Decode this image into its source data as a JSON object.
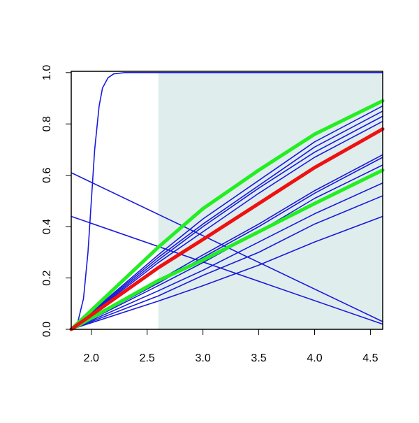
{
  "chart_data": {
    "type": "line",
    "xlim": [
      1.82,
      4.61
    ],
    "ylim": [
      0,
      1.005
    ],
    "xticks": [
      {
        "value": 2,
        "label": "2.0"
      },
      {
        "value": 2.5,
        "label": "2.5"
      },
      {
        "value": 3,
        "label": "3.0"
      },
      {
        "value": 3.5,
        "label": "3.5"
      },
      {
        "value": 4,
        "label": "4.0"
      },
      {
        "value": 4.5,
        "label": "4.5"
      }
    ],
    "yticks": [
      {
        "value": 0,
        "label": "0.0"
      },
      {
        "value": 0.2,
        "label": "0.2"
      },
      {
        "value": 0.4,
        "label": "0.4"
      },
      {
        "value": 0.6,
        "label": "0.6"
      },
      {
        "value": 0.8,
        "label": "0.8"
      },
      {
        "value": 1,
        "label": "1.0"
      }
    ],
    "shaded_region": {
      "x": [
        2.6,
        4.61
      ],
      "y": [
        0,
        1.0
      ],
      "color": "#e0eded"
    },
    "series": [
      {
        "color": "#1a1adc",
        "width": 1.6,
        "x": [
          1.82,
          1.88,
          1.93,
          1.97,
          2.0,
          2.03,
          2.07,
          2.1,
          2.15,
          2.2,
          2.3,
          4.61
        ],
        "values": [
          0,
          0.03,
          0.12,
          0.3,
          0.5,
          0.7,
          0.87,
          0.94,
          0.98,
          0.995,
          1.0,
          1.0
        ]
      },
      {
        "color": "#1a1adc",
        "width": 1.6,
        "x": [
          1.82,
          4.61
        ],
        "values": [
          0.61,
          0.03
        ]
      },
      {
        "color": "#1a1adc",
        "width": 1.6,
        "x": [
          1.82,
          4.61
        ],
        "values": [
          0.44,
          0.02
        ]
      },
      {
        "color": "#1a1adc",
        "width": 1.6,
        "x": [
          1.82,
          2.6,
          3.0,
          3.5,
          4.0,
          4.61
        ],
        "values": [
          0,
          0.29,
          0.43,
          0.58,
          0.73,
          0.87
        ]
      },
      {
        "color": "#1a1adc",
        "width": 1.6,
        "x": [
          1.82,
          2.6,
          3.0,
          3.5,
          4.0,
          4.61
        ],
        "values": [
          0,
          0.28,
          0.41,
          0.56,
          0.71,
          0.85
        ]
      },
      {
        "color": "#1a1adc",
        "width": 1.6,
        "x": [
          1.82,
          2.6,
          3.0,
          3.5,
          4.0,
          4.61
        ],
        "values": [
          0,
          0.27,
          0.4,
          0.55,
          0.69,
          0.83
        ]
      },
      {
        "color": "#1a1adc",
        "width": 1.6,
        "x": [
          1.82,
          2.6,
          3.0,
          3.5,
          4.0,
          4.61
        ],
        "values": [
          0,
          0.26,
          0.38,
          0.53,
          0.67,
          0.81
        ]
      },
      {
        "color": "#1a1adc",
        "width": 1.6,
        "x": [
          1.82,
          2.6,
          3.0,
          3.5,
          4.0,
          4.61
        ],
        "values": [
          0,
          0.19,
          0.29,
          0.41,
          0.54,
          0.68
        ]
      },
      {
        "color": "#1a1adc",
        "width": 1.6,
        "x": [
          1.82,
          2.6,
          3.0,
          3.5,
          4.0,
          4.61
        ],
        "values": [
          0,
          0.18,
          0.28,
          0.4,
          0.53,
          0.67
        ]
      },
      {
        "color": "#1a1adc",
        "width": 1.6,
        "x": [
          1.82,
          2.6,
          3.0,
          3.5,
          4.0,
          4.61
        ],
        "values": [
          0,
          0.17,
          0.26,
          0.38,
          0.51,
          0.64
        ]
      },
      {
        "color": "#1a1adc",
        "width": 1.6,
        "x": [
          1.82,
          2.6,
          3.0,
          3.5,
          4.0,
          4.61
        ],
        "values": [
          0,
          0.15,
          0.23,
          0.34,
          0.45,
          0.57
        ]
      },
      {
        "color": "#1a1adc",
        "width": 1.6,
        "x": [
          1.82,
          2.6,
          3.0,
          3.5,
          4.0,
          4.61
        ],
        "values": [
          0,
          0.13,
          0.21,
          0.3,
          0.41,
          0.52
        ]
      },
      {
        "color": "#1a1adc",
        "width": 1.6,
        "x": [
          1.82,
          2.6,
          3.0,
          3.5,
          4.0,
          4.61
        ],
        "values": [
          0,
          0.11,
          0.17,
          0.25,
          0.34,
          0.44
        ]
      },
      {
        "color": "#22ee22",
        "width": 5,
        "x": [
          1.82,
          2.6,
          3.0,
          3.5,
          4.0,
          4.61
        ],
        "values": [
          0,
          0.32,
          0.47,
          0.62,
          0.76,
          0.89
        ]
      },
      {
        "color": "#22ee22",
        "width": 5,
        "x": [
          1.82,
          2.6,
          3.0,
          3.5,
          4.0,
          4.61
        ],
        "values": [
          0,
          0.19,
          0.27,
          0.38,
          0.49,
          0.62
        ]
      },
      {
        "color": "#ee1111",
        "width": 5,
        "x": [
          1.82,
          2.6,
          3.0,
          3.5,
          4.0,
          4.61
        ],
        "values": [
          0,
          0.24,
          0.35,
          0.49,
          0.63,
          0.78
        ]
      }
    ]
  }
}
